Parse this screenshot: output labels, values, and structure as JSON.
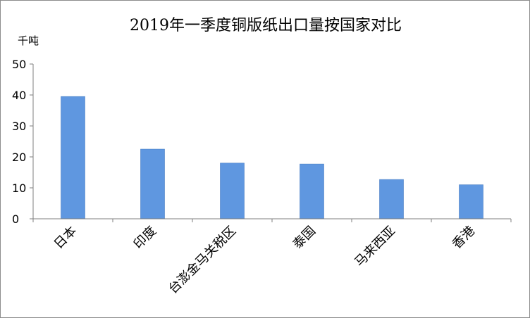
{
  "colors": {
    "bar": "#5f97e0",
    "bar_stroke": "#4a7fc4",
    "axis": "#7f7f7f"
  },
  "chart_data": {
    "type": "bar",
    "title": "2019年一季度铜版纸出口量按国家对比",
    "ylabel": "千吨",
    "xlabel": "",
    "categories": [
      "日本",
      "印度",
      "台澎金马关税区",
      "泰国",
      "马来西亚",
      "香港"
    ],
    "values": [
      39.5,
      22.5,
      18,
      17.7,
      12.7,
      11
    ],
    "ylim": [
      0,
      50
    ],
    "yticks": [
      0,
      10,
      20,
      30,
      40,
      50
    ],
    "grid": false,
    "legend": "none"
  }
}
